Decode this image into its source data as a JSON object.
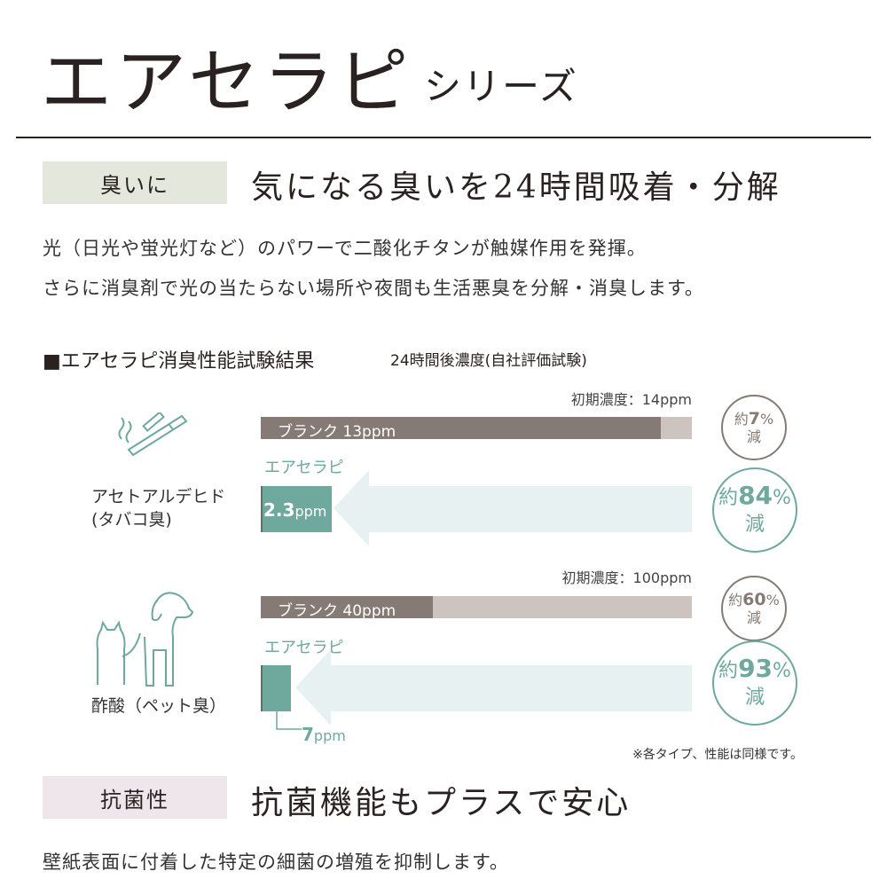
{
  "header": {
    "title": "エアセラピ",
    "subtitle": "シリーズ"
  },
  "deodor": {
    "tag": "臭いに",
    "heading": "気になる臭いを24時間吸着・分解",
    "lines": [
      "光（日光や蛍光灯など）のパワーで二酸化チタンが触媒作用を発揮。",
      "さらに消臭剤で光の当たらない場所や夜間も生活悪臭を分解・消臭します。"
    ]
  },
  "test": {
    "heading": "■エアセラピ消臭性能試験結果",
    "subheading": "24時間後濃度(自社評価試験)",
    "note": "※各タイプ、性能は同様です。"
  },
  "colors": {
    "blank": "#867a74",
    "initial": "#cdc3bf",
    "product": "#6fa89d",
    "arrow": "#e8f1f2",
    "tag1": "#e4e8dc",
    "tag2": "#efe6ec"
  },
  "chart_data": [
    {
      "type": "bar",
      "icon": "cigarette-icon",
      "label": "アセトアルデヒド",
      "label2": "(タバコ臭)",
      "initial_label": "初期濃度：14ppm",
      "initial": 14,
      "blank_label": "ブランク 13ppm",
      "blank": 13,
      "product_label": "エアセラピ",
      "product": 2.3,
      "product_value": "2.3",
      "unit": "ppm",
      "blank_reduction": {
        "pre": "約",
        "num": "7",
        "pct": "%",
        "post": "減"
      },
      "product_reduction": {
        "pre": "約",
        "num": "84",
        "pct": "%",
        "post": "減"
      }
    },
    {
      "type": "bar",
      "icon": "dog-cat-icon",
      "label": "酢酸（ペット臭）",
      "initial_label": "初期濃度：100ppm",
      "initial": 100,
      "blank_label": "ブランク 40ppm",
      "blank": 40,
      "product_label": "エアセラピ",
      "product": 7,
      "product_value": "7",
      "unit": "ppm",
      "blank_reduction": {
        "pre": "約",
        "num": "60",
        "pct": "%",
        "post": "減"
      },
      "product_reduction": {
        "pre": "約",
        "num": "93",
        "pct": "%",
        "post": "減"
      }
    }
  ],
  "antibac": {
    "tag": "抗菌性",
    "heading": "抗菌機能もプラスで安心",
    "line": "壁紙表面に付着した特定の細菌の増殖を抑制します。"
  }
}
